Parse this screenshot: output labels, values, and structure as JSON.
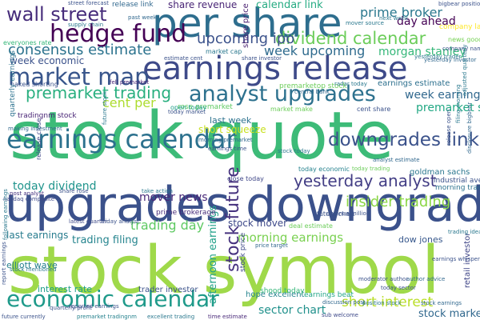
{
  "word_cloud": {
    "words": [
      {
        "text": "stock quote",
        "color": "#3dbb78"
      },
      {
        "text": "stock symbol",
        "color": "#9fd94a"
      },
      {
        "text": "upgrades downgrades",
        "color": "#3b518b"
      },
      {
        "text": "earnings release",
        "color": "#3e4a89"
      },
      {
        "text": "per share",
        "color": "#2e6e8e"
      },
      {
        "text": "economic calendar",
        "color": "#1f9a8a"
      },
      {
        "text": "earnings calendar",
        "color": "#2c718e"
      },
      {
        "text": "analyst upgrades",
        "color": "#2d718e"
      },
      {
        "text": "hedge fund",
        "color": "#440154"
      },
      {
        "text": "market map",
        "color": "#39568c"
      },
      {
        "text": "wall street",
        "color": "#472d7b"
      },
      {
        "text": "dividend calendar",
        "color": "#6ccd5a"
      },
      {
        "text": "downgrades link",
        "color": "#3b528b"
      },
      {
        "text": "yesterday analyst",
        "color": "#433e85"
      },
      {
        "text": "premarket trading",
        "color": "#29af7f"
      },
      {
        "text": "stock future",
        "color": "#46327e"
      },
      {
        "text": "insider trading",
        "color": "#8bd646"
      },
      {
        "text": "consensus estimate",
        "color": "#2c738e"
      },
      {
        "text": "upcoming ipo",
        "color": "#3b528b"
      },
      {
        "text": "short interest",
        "color": "#bade28"
      },
      {
        "text": "trading day",
        "color": "#5ec962"
      },
      {
        "text": "morning earnings",
        "color": "#7ad151"
      },
      {
        "text": "week upcoming",
        "color": "#2f6b8e"
      },
      {
        "text": "cent per",
        "color": "#addc30"
      },
      {
        "text": "today dividend",
        "color": "#1f948c"
      },
      {
        "text": "prime broker",
        "color": "#2a788e"
      },
      {
        "text": "morgan stanley",
        "color": "#35b779"
      },
      {
        "text": "share revenue",
        "color": "#482475"
      },
      {
        "text": "sector chart",
        "color": "#21918c"
      },
      {
        "text": "calendar link",
        "color": "#25ab82"
      },
      {
        "text": "trading filing",
        "color": "#25848e"
      },
      {
        "text": "premarket stock",
        "color": "#22a884"
      },
      {
        "text": "week economic",
        "color": "#3b528b"
      },
      {
        "text": "week earnings",
        "color": "#31688e"
      },
      {
        "text": "mover news",
        "color": "#482878"
      },
      {
        "text": "stock mover",
        "color": "#3e4989"
      },
      {
        "text": "day ahead",
        "color": "#440154"
      },
      {
        "text": "stock market",
        "color": "#31688e"
      },
      {
        "text": "last week",
        "color": "#2c728e"
      },
      {
        "text": "short squeeze",
        "color": "#c8e020"
      },
      {
        "text": "afternoon earnings",
        "color": "#1fa088"
      },
      {
        "text": "dow jones",
        "color": "#38588c"
      },
      {
        "text": "last earnings",
        "color": "#287c8e"
      },
      {
        "text": "interest rate",
        "color": "#1f9e89"
      },
      {
        "text": "trader investor",
        "color": "#3b528b"
      },
      {
        "text": "stock price",
        "color": "#3e4989"
      },
      {
        "text": "elliott wave",
        "color": "#27808e"
      },
      {
        "text": "goldman sachs",
        "color": "#2a768e"
      },
      {
        "text": "earnings estimate",
        "color": "#2d708e"
      },
      {
        "text": "hope excellent",
        "color": "#25848e"
      },
      {
        "text": "prime brokerage",
        "color": "#472c7a"
      },
      {
        "text": "close today",
        "color": "#3f4788"
      },
      {
        "text": "earnings beat",
        "color": "#20a486"
      },
      {
        "text": "morning trader",
        "color": "#2c728e"
      },
      {
        "text": "industrial average",
        "color": "#3b528b"
      },
      {
        "text": "retail investor",
        "color": "#404688"
      },
      {
        "text": "rose premarket",
        "color": "#5ec962"
      },
      {
        "text": "nasdaq composite",
        "color": "#3e4a89"
      },
      {
        "text": "market cap",
        "color": "#2a788e"
      },
      {
        "text": "share price",
        "color": "#481f70"
      },
      {
        "text": "tradingnm stock",
        "color": "#482475"
      },
      {
        "text": "naked shorting",
        "color": "#3b528b"
      },
      {
        "text": "company last",
        "color": "#fde725"
      },
      {
        "text": "news good",
        "color": "#75d054"
      },
      {
        "text": "everyones rate",
        "color": "#35b779"
      },
      {
        "text": "release link",
        "color": "#31688e"
      },
      {
        "text": "quarterly earnings",
        "color": "#2c728e"
      },
      {
        "text": "premarketop stock",
        "color": "#6ccd5a"
      },
      {
        "text": "release close",
        "color": "#3f4788"
      },
      {
        "text": "morning premarket",
        "color": "#31688e"
      },
      {
        "text": "earnings time",
        "color": "#3b528b"
      },
      {
        "text": "radar today",
        "color": "#2a788e"
      },
      {
        "text": "today economic",
        "color": "#26828e"
      },
      {
        "text": "today trading",
        "color": "#6ccd5a"
      },
      {
        "text": "future chart",
        "color": "#3b528b"
      },
      {
        "text": "take action",
        "color": "#2a788e"
      },
      {
        "text": "share rose",
        "color": "#3b528b"
      },
      {
        "text": "post analyst",
        "color": "#46327e"
      },
      {
        "text": "open today",
        "color": "#1f9e89"
      },
      {
        "text": "today market",
        "color": "#3b528b"
      },
      {
        "text": "market make",
        "color": "#6ccd5a"
      },
      {
        "text": "cent share",
        "color": "#3b528b"
      },
      {
        "text": "yesterday trader",
        "color": "#2a788e"
      },
      {
        "text": "central bank",
        "color": "#31688e"
      },
      {
        "text": "sub welcome",
        "color": "#3e4989"
      },
      {
        "text": "time estimate",
        "color": "#482878"
      },
      {
        "text": "future currently",
        "color": "#3b528b"
      },
      {
        "text": "premarket tradingnm",
        "color": "#26828e"
      },
      {
        "text": "excellent trading",
        "color": "#2a788e"
      },
      {
        "text": "today sector",
        "color": "#3b528b"
      },
      {
        "text": "latest quarter",
        "color": "#3e4989"
      },
      {
        "text": "stock mentioned",
        "color": "#2a788e"
      },
      {
        "text": "author advice",
        "color": "#31688e"
      },
      {
        "text": "moderator author",
        "color": "#3b528b"
      },
      {
        "text": "next week",
        "color": "#2a788e"
      },
      {
        "text": "mover source",
        "color": "#2a788e"
      },
      {
        "text": "share investor",
        "color": "#3b528b"
      },
      {
        "text": "yesterday investor",
        "color": "#31688e"
      },
      {
        "text": "estimate cent",
        "color": "#3b528b"
      },
      {
        "text": "fell premarket",
        "color": "#482878"
      },
      {
        "text": "street forecast",
        "color": "#3b528b"
      },
      {
        "text": "supply chain",
        "color": "#2a788e"
      },
      {
        "text": "past week",
        "color": "#31688e"
      },
      {
        "text": "stock today",
        "color": "#2a788e"
      },
      {
        "text": "discussion post",
        "color": "#31688e"
      },
      {
        "text": "revenue million",
        "color": "#3b528b"
      },
      {
        "text": "shood today",
        "color": "#35b779"
      },
      {
        "text": "deal estimate",
        "color": "#6ccd5a"
      },
      {
        "text": "filing morning",
        "color": "#2a788e"
      },
      {
        "text": "bigbear position",
        "color": "#3b528b"
      },
      {
        "text": "position stock",
        "color": "#2a788e"
      },
      {
        "text": "stock earnings",
        "color": "#31688e"
      },
      {
        "text": "earnings whisper",
        "color": "#3b528b"
      },
      {
        "text": "company name",
        "color": "#3b528b"
      },
      {
        "text": "trading idea",
        "color": "#2a788e"
      },
      {
        "text": "release open",
        "color": "#3b528b"
      },
      {
        "text": "disclosure bigbear",
        "color": "#31688e"
      },
      {
        "text": "adjusted quarterly",
        "color": "#2a788e"
      },
      {
        "text": "friday analyst",
        "color": "#3b528b"
      },
      {
        "text": "analyst estimate",
        "color": "#31688e"
      },
      {
        "text": "report earnings",
        "color": "#3b528b"
      },
      {
        "text": "following earnings",
        "color": "#2a788e"
      },
      {
        "text": "quarterly profit",
        "color": "#3b528b"
      },
      {
        "text": "making investment",
        "color": "#31688e"
      },
      {
        "text": "future stock",
        "color": "#2a788e"
      },
      {
        "text": "reported earnings",
        "color": "#3b528b"
      },
      {
        "text": "price target",
        "color": "#31688e"
      }
    ]
  }
}
